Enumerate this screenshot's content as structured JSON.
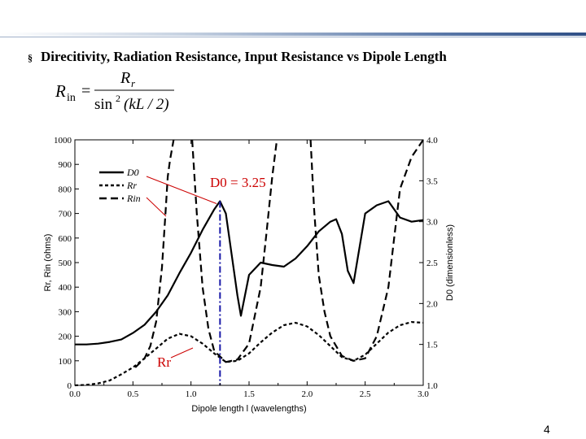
{
  "slide": {
    "heading": "Direcitivity, Radiation Resistance, Input Resistance vs Dipole Length",
    "bullet": "§",
    "page_number": "4",
    "formula": {
      "lhs": "R",
      "lhs_sub": "in",
      "eq": "=",
      "num": "R",
      "num_sub": "r",
      "den": "sin",
      "den_exp": "2",
      "den_arg": "(kL / 2)"
    }
  },
  "chart_data": {
    "type": "line",
    "xlabel": "Dipole length l (wavelengths)",
    "ylabel_left": "Rr, Rin (ohms)",
    "ylabel_right": "D0 (dimensionless)",
    "xlim": [
      0,
      3
    ],
    "ylim_left": [
      0,
      1000
    ],
    "ylim_right": [
      1.0,
      4.0
    ],
    "x_ticks": [
      "0.0",
      "0.5",
      "1.0",
      "1.5",
      "2.0",
      "2.5",
      "3.0"
    ],
    "y_ticks_left": [
      "0",
      "100",
      "200",
      "300",
      "400",
      "500",
      "600",
      "700",
      "800",
      "900",
      "1000"
    ],
    "y_ticks_right": [
      "1.0",
      "1.5",
      "2.0",
      "2.5",
      "3.0",
      "3.5",
      "4.0"
    ],
    "legend": {
      "position": "top-left",
      "entries": [
        "D0",
        "Rr",
        "Rin"
      ]
    },
    "annotations": [
      {
        "text": "D0 = 3.25",
        "color": "#cc0000"
      },
      {
        "text": "Rr",
        "color": "#cc0000"
      }
    ],
    "marker_line": {
      "x": 1.25,
      "color": "#1a1aa8"
    },
    "series": [
      {
        "name": "D0",
        "axis": "right",
        "style": "solid",
        "x": [
          0,
          0.1,
          0.2,
          0.3,
          0.4,
          0.5,
          0.6,
          0.7,
          0.8,
          0.9,
          1.0,
          1.1,
          1.2,
          1.25,
          1.3,
          1.35,
          1.4,
          1.43,
          1.5,
          1.6,
          1.7,
          1.8,
          1.9,
          2.0,
          2.1,
          2.2,
          2.25,
          2.3,
          2.35,
          2.4,
          2.5,
          2.6,
          2.7,
          2.8,
          2.9,
          3.0
        ],
        "y": [
          1.5,
          1.5,
          1.51,
          1.53,
          1.56,
          1.64,
          1.74,
          1.9,
          2.1,
          2.37,
          2.62,
          2.9,
          3.15,
          3.25,
          3.1,
          2.6,
          2.1,
          1.85,
          2.35,
          2.5,
          2.47,
          2.45,
          2.55,
          2.7,
          2.88,
          3.0,
          3.03,
          2.85,
          2.4,
          2.25,
          3.1,
          3.2,
          3.25,
          3.05,
          3.0,
          3.02
        ]
      },
      {
        "name": "Rr",
        "axis": "left",
        "style": "short-dash",
        "x": [
          0,
          0.1,
          0.2,
          0.3,
          0.4,
          0.5,
          0.6,
          0.7,
          0.8,
          0.9,
          1.0,
          1.1,
          1.2,
          1.3,
          1.4,
          1.5,
          1.6,
          1.7,
          1.8,
          1.9,
          2.0,
          2.1,
          2.2,
          2.3,
          2.4,
          2.5,
          2.6,
          2.7,
          2.8,
          2.9,
          3.0
        ],
        "y": [
          0,
          2,
          8,
          20,
          45,
          73,
          110,
          150,
          190,
          210,
          200,
          170,
          130,
          95,
          100,
          130,
          175,
          215,
          245,
          255,
          240,
          205,
          160,
          115,
          100,
          125,
          170,
          215,
          245,
          258,
          255
        ]
      },
      {
        "name": "Rin",
        "axis": "left",
        "style": "long-dash",
        "x": [
          0.52,
          0.6,
          0.65,
          0.7,
          0.75,
          0.78,
          0.8,
          0.82,
          0.85,
          null,
          1.01,
          1.05,
          1.1,
          1.15,
          1.2,
          1.3,
          1.4,
          1.5,
          1.6,
          1.65,
          1.7,
          1.74,
          null,
          2.03,
          2.06,
          2.1,
          2.15,
          2.2,
          2.3,
          2.4,
          2.5,
          2.6,
          2.7,
          2.75,
          2.8,
          2.9,
          3.0
        ],
        "y": [
          73,
          110,
          160,
          260,
          480,
          700,
          850,
          920,
          1000,
          null,
          1000,
          700,
          400,
          230,
          140,
          95,
          105,
          170,
          400,
          620,
          850,
          1000,
          null,
          1000,
          720,
          450,
          300,
          200,
          120,
          100,
          110,
          200,
          400,
          600,
          800,
          930,
          1000
        ]
      }
    ]
  }
}
